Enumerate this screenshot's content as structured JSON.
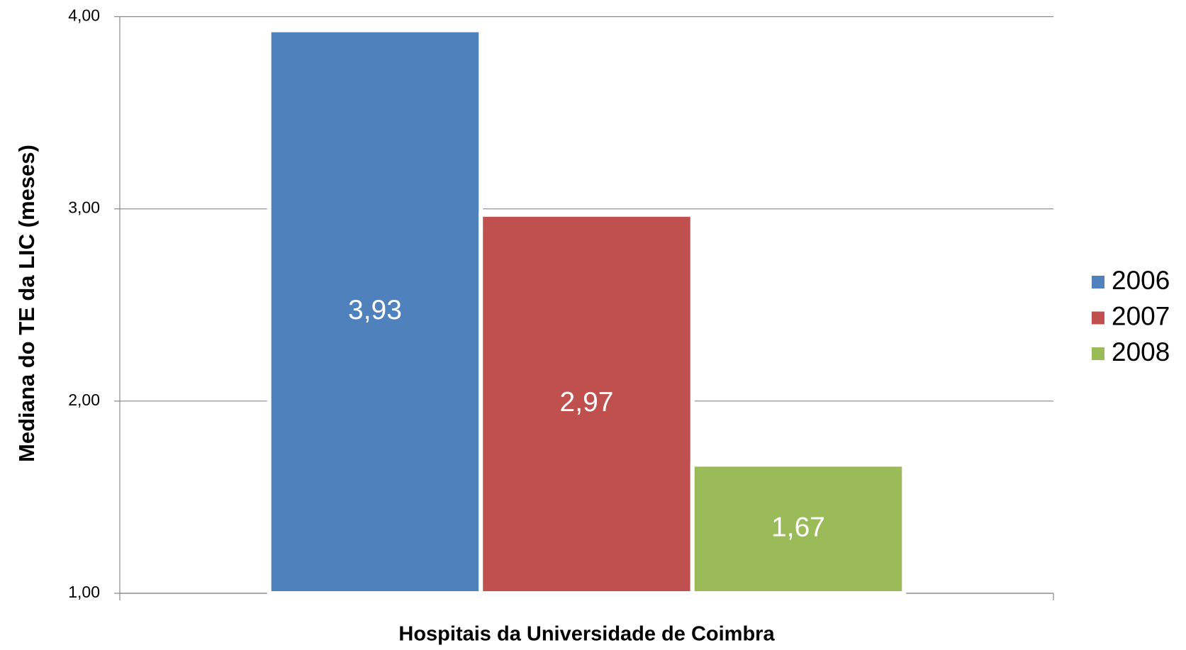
{
  "chart_data": {
    "type": "bar",
    "y_label": "Mediana do TE da LIC (meses)",
    "categories": [
      "Hospitais da Universidade de Coimbra"
    ],
    "series": [
      {
        "name": "2006",
        "color": "#4f81bd",
        "values": [
          3.93
        ],
        "value_labels": [
          "3,93"
        ]
      },
      {
        "name": "2007",
        "color": "#c0504d",
        "values": [
          2.97
        ],
        "value_labels": [
          "2,97"
        ]
      },
      {
        "name": "2008",
        "color": "#9bbb59",
        "values": [
          1.67
        ],
        "value_labels": [
          "1,67"
        ]
      }
    ],
    "ylim": [
      1,
      4
    ],
    "yticks": [
      {
        "value": 1,
        "label": "1,00"
      },
      {
        "value": 2,
        "label": "2,00"
      },
      {
        "value": 3,
        "label": "3,00"
      },
      {
        "value": 4,
        "label": "4,00"
      }
    ],
    "grid": true,
    "legend": "right"
  }
}
